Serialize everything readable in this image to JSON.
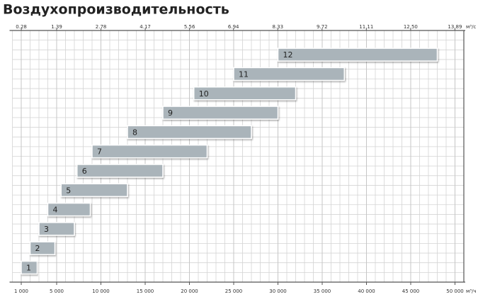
{
  "chart_data": {
    "type": "range_bar",
    "title": "Воздухопроизводительность",
    "categories": [
      "1",
      "2",
      "3",
      "4",
      "5",
      "6",
      "7",
      "8",
      "9",
      "10",
      "11",
      "12"
    ],
    "starts": [
      1000,
      2000,
      3000,
      4000,
      5500,
      7300,
      9000,
      13000,
      17000,
      20500,
      25000,
      30000
    ],
    "ends": [
      2800,
      4800,
      7000,
      8800,
      13000,
      17000,
      22000,
      27000,
      30000,
      32000,
      37500,
      48000
    ],
    "color": "#aab4ba",
    "xlim": [
      0,
      51000
    ],
    "xticks": [
      {
        "value": 1000,
        "label": "1 000"
      },
      {
        "value": 5000,
        "label": "5 000"
      },
      {
        "value": 10000,
        "label": "10 000"
      },
      {
        "value": 15000,
        "label": "15 000"
      },
      {
        "value": 20000,
        "label": "20 000"
      },
      {
        "value": 25000,
        "label": "25 000"
      },
      {
        "value": 30000,
        "label": "30 000"
      },
      {
        "value": 35000,
        "label": "35 000"
      },
      {
        "value": 40000,
        "label": "40 000"
      },
      {
        "value": 45000,
        "label": "45 000"
      },
      {
        "value": 50000,
        "label": "50 000"
      }
    ],
    "x_unit": "м³/ч",
    "x2lim": [
      0,
      14.17
    ],
    "x2ticks": [
      0.28,
      1.39,
      2.78,
      4.17,
      5.56,
      6.94,
      8.33,
      9.72,
      11.11,
      {
        "value": 12.5,
        "label": "12.50"
      },
      13.89
    ],
    "x2_unit": "м³/с",
    "grid": true
  }
}
